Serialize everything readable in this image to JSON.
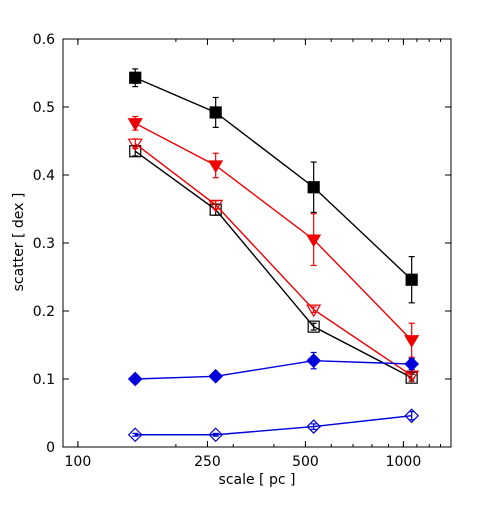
{
  "chart_data": {
    "type": "line",
    "xlabel": "scale [ pc ]",
    "ylabel": "scatter [ dex ]",
    "xscale": "log",
    "xlim": [
      90,
      1400
    ],
    "ylim": [
      0,
      0.6
    ],
    "xticks": [
      100,
      250,
      500,
      1000
    ],
    "xtick_labels": [
      "100",
      "250",
      "500",
      "1000"
    ],
    "yticks": [
      0,
      0.1,
      0.2,
      0.3,
      0.4,
      0.5,
      0.6
    ],
    "ytick_labels": [
      "0",
      "0.1",
      "0.2",
      "0.3",
      "0.4",
      "0.5",
      "0.6"
    ],
    "grid": false,
    "legend": "none",
    "x": [
      150,
      265,
      530,
      1060
    ],
    "series": [
      {
        "color": "#000000",
        "marker": "square",
        "filled": true,
        "values": [
          0.543,
          0.492,
          0.382,
          0.246
        ],
        "errors": [
          0.013,
          0.022,
          0.037,
          0.034
        ]
      },
      {
        "color": "#000000",
        "marker": "square",
        "filled": false,
        "values": [
          0.435,
          0.349,
          0.177,
          0.102
        ],
        "errors": [
          0.007,
          0.008,
          0.005,
          0.005
        ]
      },
      {
        "color": "#ee0000",
        "marker": "triangle-down",
        "filled": true,
        "values": [
          0.476,
          0.414,
          0.305,
          0.157
        ],
        "errors": [
          0.01,
          0.018,
          0.038,
          0.025
        ]
      },
      {
        "color": "#ee0000",
        "marker": "triangle-down",
        "filled": false,
        "values": [
          0.446,
          0.356,
          0.202,
          0.105
        ],
        "errors": [
          0.007,
          0.006,
          0.004,
          0.004
        ]
      },
      {
        "color": "#0000dd",
        "marker": "diamond",
        "filled": true,
        "values": [
          0.1,
          0.104,
          0.127,
          0.122
        ],
        "errors": [
          0.004,
          0.004,
          0.012,
          0.008
        ]
      },
      {
        "color": "#0000dd",
        "marker": "diamond",
        "filled": false,
        "values": [
          0.018,
          0.018,
          0.03,
          0.046
        ],
        "errors": [
          0.002,
          0.002,
          0.004,
          0.006
        ]
      }
    ]
  }
}
